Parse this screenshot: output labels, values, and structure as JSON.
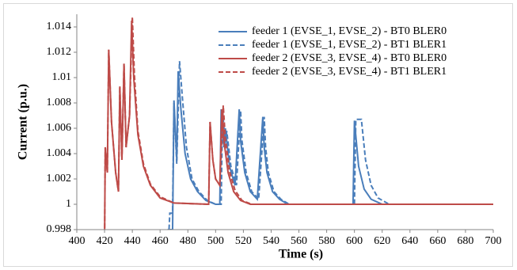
{
  "chart_data": {
    "type": "line",
    "xlabel": "Time (s)",
    "ylabel": "Current (p.u.)",
    "xlim": [
      400,
      700
    ],
    "xticks": [
      400,
      420,
      440,
      460,
      480,
      500,
      520,
      540,
      560,
      580,
      600,
      620,
      640,
      660,
      680,
      700
    ],
    "ylim": [
      0.998,
      1.015
    ],
    "yticks": [
      0.998,
      1,
      1.002,
      1.004,
      1.006,
      1.008,
      1.01,
      1.012,
      1.014
    ],
    "legend": "upper right",
    "series": [
      {
        "name": "feeder 1 (EVSE_1, EVSE_2) - BT0 BLER0",
        "color": "#4a7ebb",
        "linestyle": "solid",
        "x": [
          460,
          465,
          466,
          469,
          470,
          472,
          473,
          475,
          478,
          482,
          487,
          493,
          500,
          503,
          504,
          506,
          507,
          510,
          514,
          517,
          518,
          521,
          525,
          530,
          534,
          535,
          537,
          541,
          546,
          552,
          560,
          599,
          600,
          603,
          607,
          612,
          620,
          700
        ],
        "values": [
          0.997,
          0.997,
          0.998,
          0.998,
          1.0082,
          1.0035,
          1.0105,
          1.0075,
          1.004,
          1.002,
          1.001,
          1.0003,
          1.0,
          1.0,
          1.0075,
          1.0045,
          1.006,
          1.003,
          1.0015,
          1.0075,
          1.005,
          1.0025,
          1.001,
          1.0004,
          1.0069,
          1.0045,
          1.0025,
          1.001,
          1.0004,
          1.0,
          1.0,
          1.0,
          1.0066,
          1.003,
          1.0012,
          1.0004,
          1.0,
          1.0
        ]
      },
      {
        "name": "feeder 1 (EVSE_1, EVSE_2) - BT1 BLER1",
        "color": "#4a7ebb",
        "linestyle": "dashed",
        "x": [
          460,
          466,
          467,
          469,
          470,
          472,
          474,
          476,
          479,
          483,
          488,
          494,
          500,
          504,
          505,
          507,
          508,
          511,
          515,
          518,
          519,
          522,
          526,
          531,
          535,
          536,
          538,
          542,
          547,
          553,
          600,
          601,
          605,
          608,
          612,
          617,
          625,
          700
        ],
        "values": [
          0.997,
          0.997,
          0.9993,
          0.9993,
          1.008,
          1.0032,
          1.0113,
          1.0085,
          1.0045,
          1.002,
          1.001,
          1.0003,
          1.0,
          1.0,
          1.0075,
          1.0045,
          1.0058,
          1.003,
          1.0015,
          1.0074,
          1.005,
          1.0025,
          1.001,
          1.0004,
          1.0069,
          1.0045,
          1.0025,
          1.001,
          1.0004,
          1.0,
          1.0,
          1.0067,
          1.0067,
          1.0035,
          1.0015,
          1.0005,
          1.0,
          1.0
        ]
      },
      {
        "name": "feeder 2 (EVSE_3, EVSE_4) - BT0 BLER0",
        "color": "#be4b48",
        "linestyle": "solid",
        "x": [
          420,
          420.5,
          422,
          423,
          425,
          428,
          430,
          431,
          432.5,
          434,
          435.5,
          438,
          439.5,
          441,
          444,
          448,
          453,
          460,
          470,
          495,
          496,
          498,
          500,
          503,
          504.5,
          506,
          509,
          513,
          518,
          525,
          700
        ],
        "values": [
          0.997,
          1.0045,
          1.0025,
          1.0122,
          1.0065,
          1.0025,
          1.001,
          1.0093,
          1.0035,
          1.0111,
          1.0045,
          1.007,
          1.0145,
          1.01,
          1.0055,
          1.003,
          1.0015,
          1.0005,
          1.0001,
          1.0,
          1.0065,
          1.0035,
          1.002,
          1.0015,
          1.0075,
          1.005,
          1.0025,
          1.001,
          1.0003,
          1.0,
          1.0
        ]
      },
      {
        "name": "feeder 2 (EVSE_3, EVSE_4) - BT1 BLER1",
        "color": "#be4b48",
        "linestyle": "dashed",
        "x": [
          420,
          420.5,
          422,
          423,
          425,
          428,
          430,
          431,
          432.5,
          434,
          435.5,
          438,
          440,
          441.5,
          444,
          448,
          453,
          460,
          470,
          495,
          496,
          498,
          500,
          503,
          505.5,
          507,
          510,
          514,
          519,
          526,
          700
        ],
        "values": [
          0.997,
          1.0045,
          1.0025,
          1.0122,
          1.0065,
          1.0025,
          1.001,
          1.0093,
          1.0035,
          1.0111,
          1.0045,
          1.007,
          1.0148,
          1.0102,
          1.0058,
          1.0032,
          1.0016,
          1.0006,
          1.0001,
          1.0,
          1.0065,
          1.0035,
          1.002,
          1.0015,
          1.0078,
          1.0052,
          1.0026,
          1.0011,
          1.0003,
          1.0,
          1.0
        ]
      }
    ]
  }
}
